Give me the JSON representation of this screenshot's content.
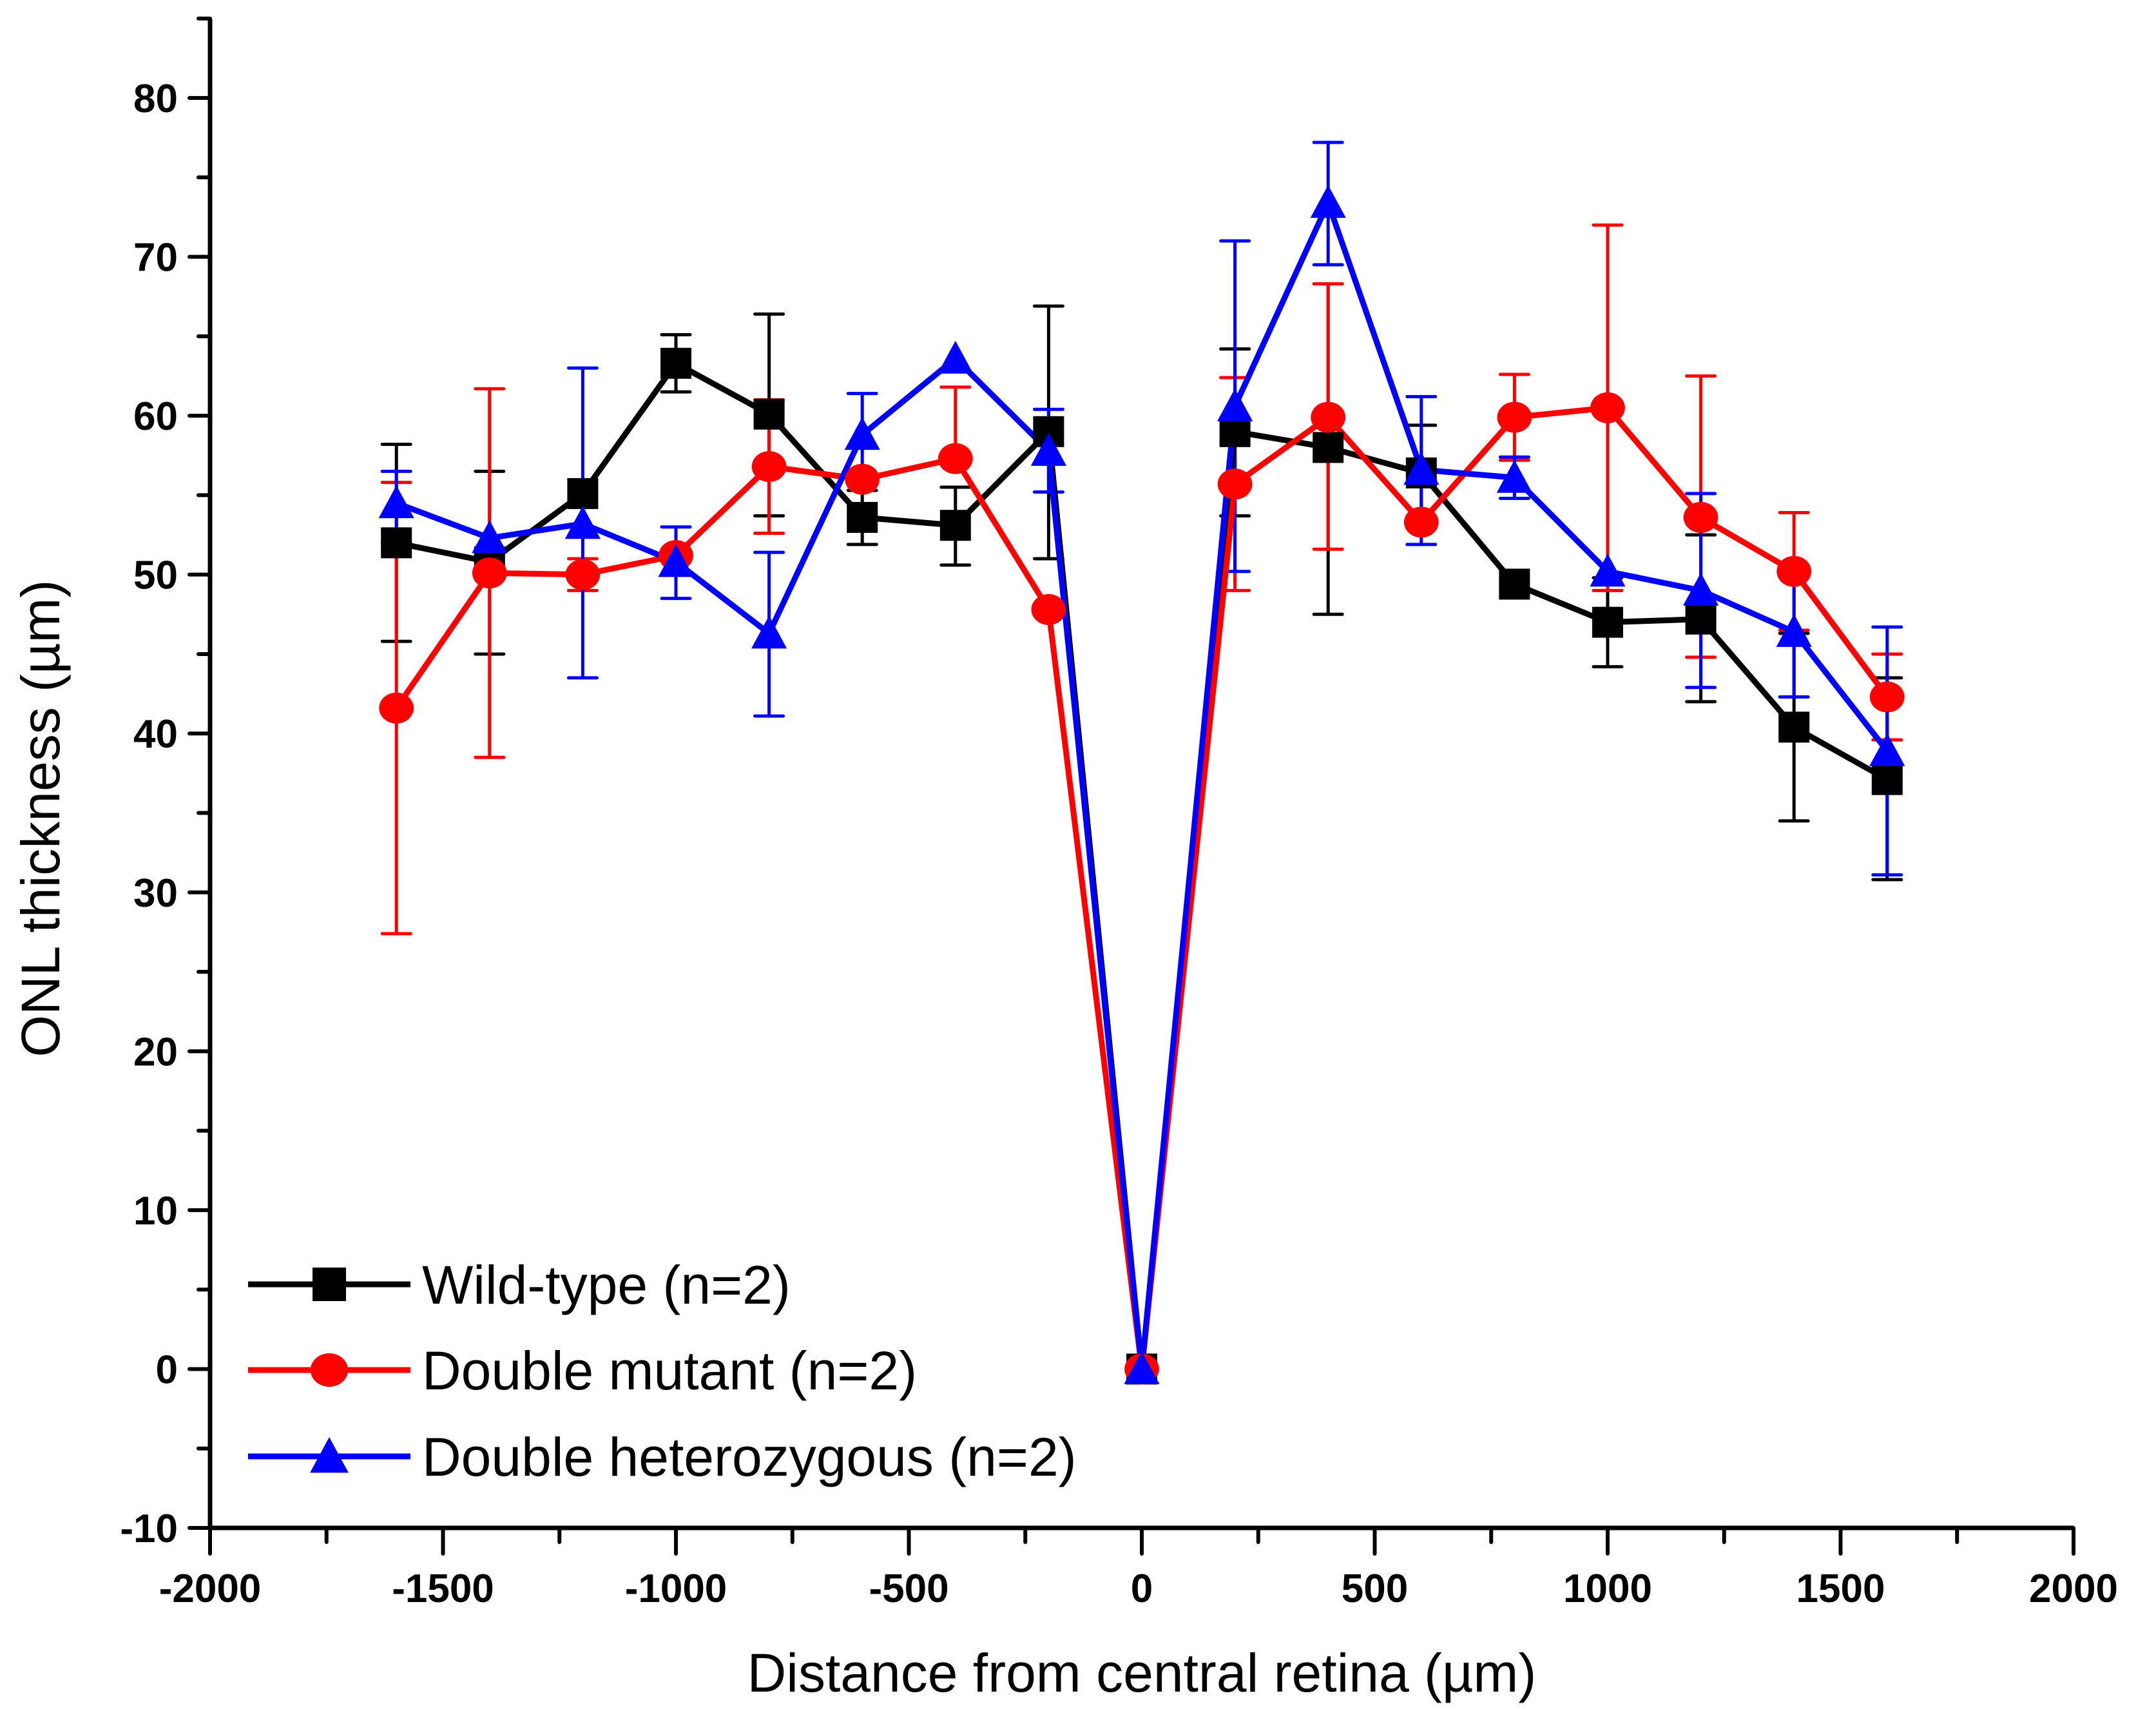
{
  "chart_data": {
    "type": "line",
    "title": "",
    "xlabel": "Distance from central retina (µm)",
    "ylabel": "ONL thickness (µm)",
    "xlim": [
      -2000,
      2000
    ],
    "ylim": [
      -10,
      85
    ],
    "xticks": [
      -2000,
      -1500,
      -1000,
      -500,
      0,
      500,
      1000,
      1500,
      2000
    ],
    "xtick_labels": [
      "-2000",
      "-1500",
      "-1000",
      "-500",
      "0",
      "500",
      "1000",
      "1500",
      "2000"
    ],
    "yticks": [
      -10,
      0,
      10,
      20,
      30,
      40,
      50,
      60,
      70,
      80
    ],
    "ytick_labels": [
      "-10",
      "0",
      "10",
      "20",
      "30",
      "40",
      "50",
      "60",
      "70",
      "80"
    ],
    "grid": false,
    "legend_position": "bottom-left",
    "x": [
      -1600,
      -1400,
      -1200,
      -1000,
      -800,
      -600,
      -400,
      -200,
      0,
      200,
      400,
      600,
      800,
      1000,
      1200,
      1400,
      1600
    ],
    "series": [
      {
        "name": "Wild-type (n=2)",
        "color": "#000000",
        "marker": "square",
        "values": [
          52.0,
          50.8,
          55.1,
          63.3,
          60.1,
          53.6,
          53.1,
          59.0,
          0,
          59.0,
          58.0,
          56.4,
          49.4,
          47.0,
          47.2,
          40.4,
          37.1
        ],
        "err_low": [
          45.8,
          45.0,
          null,
          61.5,
          53.7,
          51.9,
          50.6,
          51.0,
          null,
          53.7,
          47.5,
          53.5,
          null,
          44.2,
          42.0,
          34.5,
          30.8
        ],
        "err_high": [
          58.2,
          56.5,
          null,
          65.1,
          66.4,
          55.3,
          55.5,
          66.9,
          null,
          64.2,
          68.3,
          59.4,
          null,
          49.8,
          52.5,
          46.3,
          43.5
        ]
      },
      {
        "name": "Double mutant (n=2)",
        "color": "#ff0000",
        "marker": "circle",
        "values": [
          41.6,
          50.1,
          50.0,
          51.2,
          56.8,
          56.0,
          57.3,
          47.8,
          0,
          55.7,
          59.9,
          53.3,
          59.9,
          60.5,
          53.6,
          50.2,
          42.3
        ],
        "err_low": [
          27.4,
          38.5,
          49.0,
          null,
          52.6,
          null,
          null,
          null,
          null,
          49.0,
          51.6,
          null,
          57.2,
          49.0,
          44.8,
          46.5,
          39.6
        ],
        "err_high": [
          55.8,
          61.7,
          51.0,
          null,
          61.0,
          null,
          61.8,
          null,
          null,
          62.4,
          68.3,
          null,
          62.6,
          72.0,
          62.5,
          53.9,
          45.0
        ]
      },
      {
        "name": "Double heterozygous (n=2)",
        "color": "#0000ff",
        "marker": "triangle",
        "values": [
          54.5,
          52.3,
          53.2,
          50.8,
          46.3,
          58.8,
          63.6,
          57.8,
          0,
          60.6,
          73.4,
          56.6,
          56.1,
          50.2,
          49.0,
          46.4,
          38.9
        ],
        "err_low": [
          52.0,
          null,
          43.5,
          48.5,
          41.1,
          56.2,
          null,
          55.2,
          null,
          50.2,
          69.5,
          51.9,
          54.8,
          null,
          42.9,
          42.3,
          31.1
        ],
        "err_high": [
          56.5,
          null,
          63.0,
          53.0,
          51.4,
          61.4,
          null,
          60.4,
          null,
          71.0,
          77.2,
          61.2,
          57.4,
          null,
          55.1,
          50.5,
          46.7
        ]
      }
    ]
  }
}
